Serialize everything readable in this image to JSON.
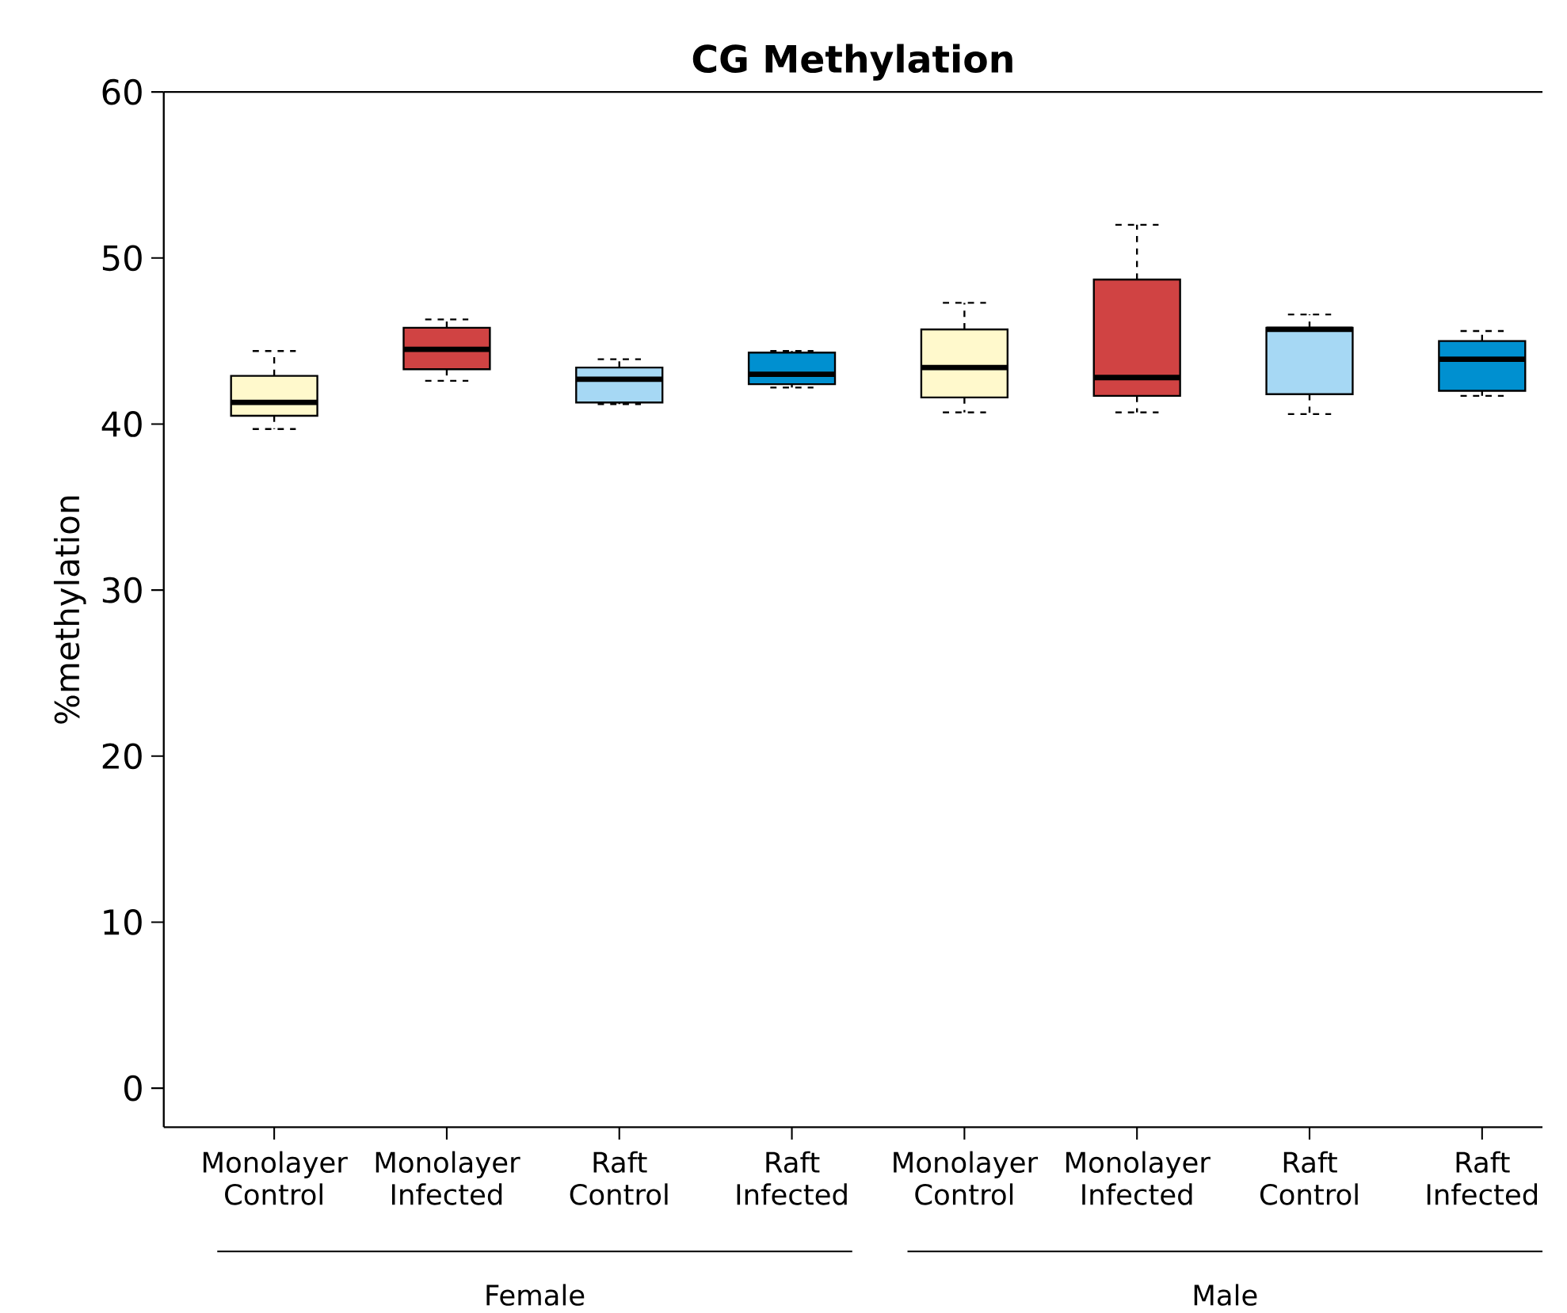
{
  "chart_data": {
    "type": "box",
    "title": "CG Methylation",
    "ylabel": "%methylation",
    "categories": [
      "Monolayer Control",
      "Monolayer Infected",
      "Raft Control",
      "Raft Infected",
      "Monolayer Control",
      "Monolayer Infected",
      "Raft Control",
      "Raft Infected"
    ],
    "boxes": [
      {
        "low": 39.7,
        "q1": 40.5,
        "median": 41.3,
        "q3": 42.9,
        "high": 44.4
      },
      {
        "low": 42.6,
        "q1": 43.3,
        "median": 44.5,
        "q3": 45.8,
        "high": 46.3
      },
      {
        "low": 41.2,
        "q1": 41.3,
        "median": 42.7,
        "q3": 43.4,
        "high": 43.9
      },
      {
        "low": 42.2,
        "q1": 42.4,
        "median": 43.0,
        "q3": 44.3,
        "high": 44.4
      },
      {
        "low": 40.7,
        "q1": 41.6,
        "median": 43.4,
        "q3": 45.7,
        "high": 47.3
      },
      {
        "low": 40.7,
        "q1": 41.7,
        "median": 42.8,
        "q3": 48.7,
        "high": 52.0
      },
      {
        "low": 40.6,
        "q1": 41.8,
        "median": 45.7,
        "q3": 45.8,
        "high": 46.6
      },
      {
        "low": 41.7,
        "q1": 42.0,
        "median": 43.9,
        "q3": 45.0,
        "high": 45.6
      }
    ],
    "colors": [
      "#fff9cc",
      "#d04343",
      "#a6d8f4",
      "#0090d0",
      "#fff9cc",
      "#d04343",
      "#a6d8f4",
      "#0090d0"
    ],
    "ylim": [
      -2.35,
      60
    ],
    "yticks": [
      0,
      10,
      20,
      30,
      40,
      50,
      60
    ],
    "annotations": [
      "Female",
      "Male"
    ]
  }
}
